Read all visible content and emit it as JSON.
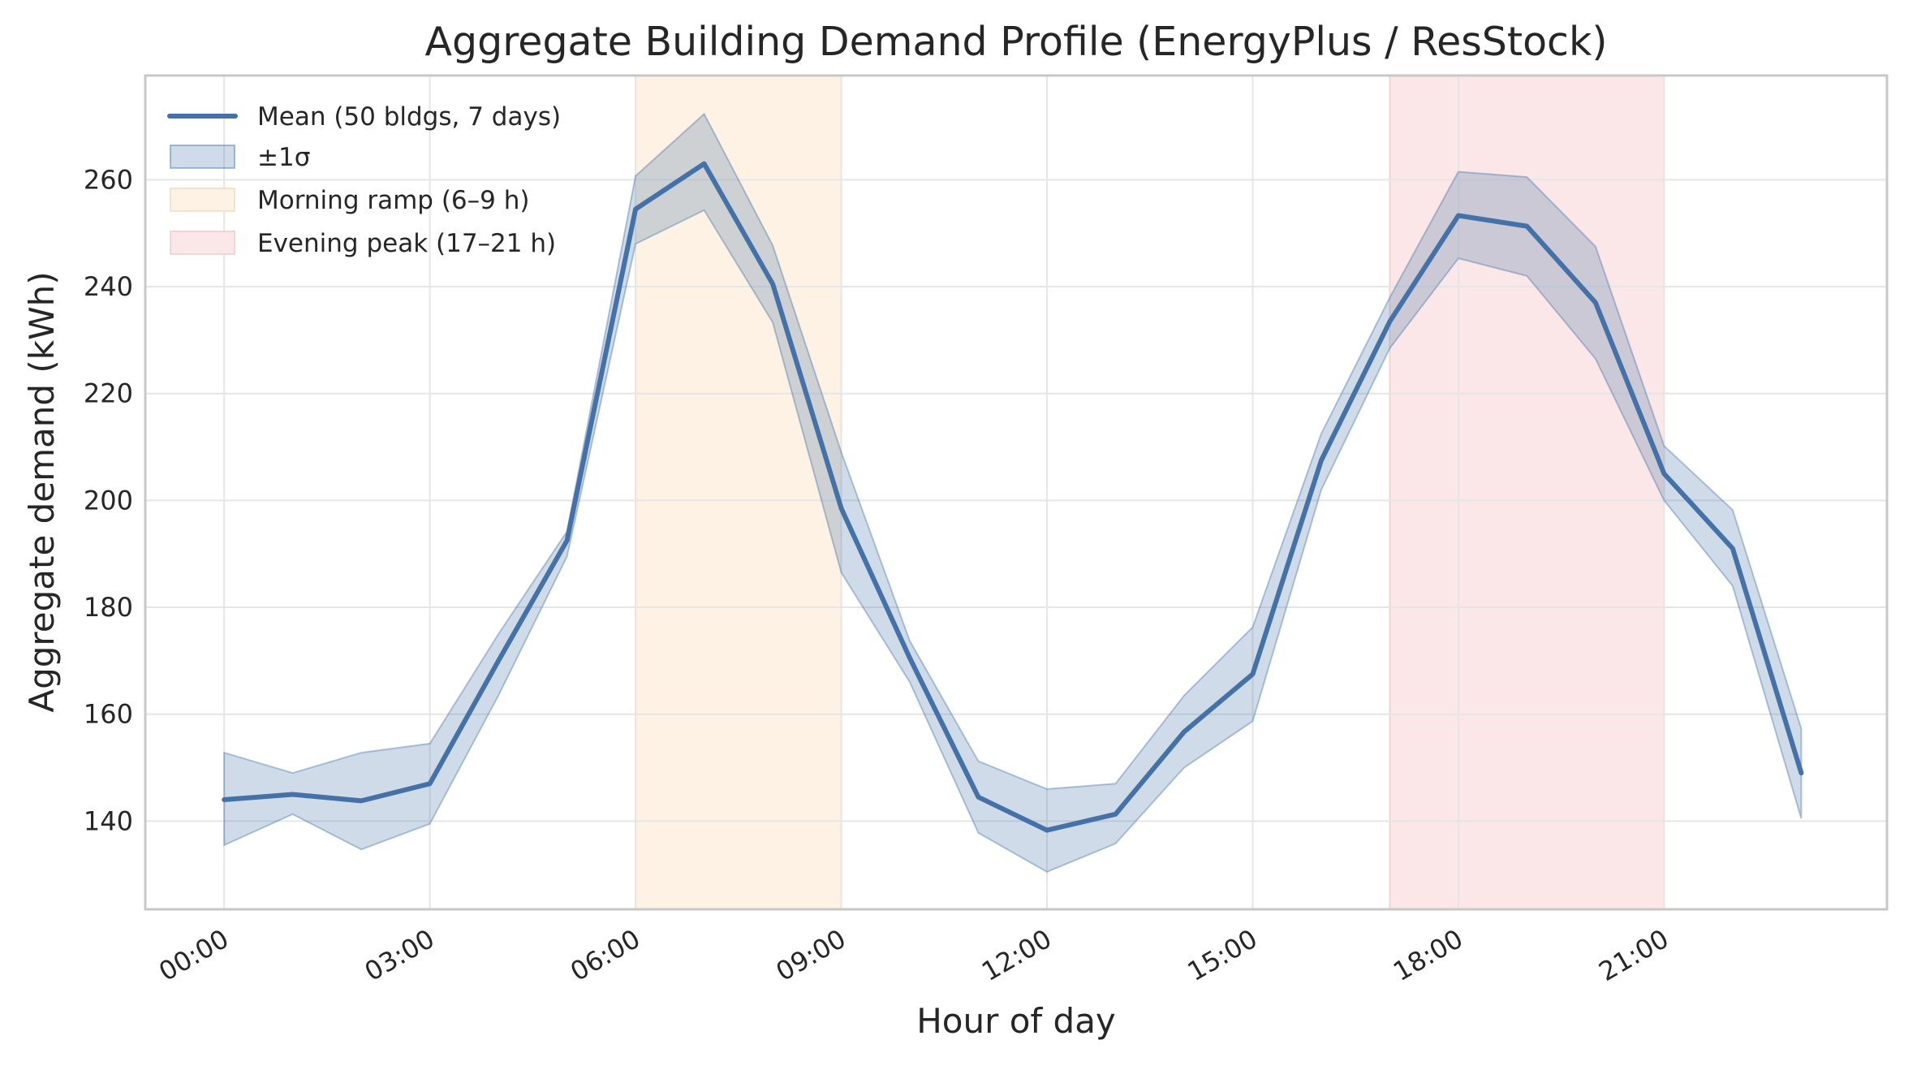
{
  "chart_data": {
    "type": "line",
    "title": "Aggregate Building Demand Profile (EnergyPlus / ResStock)",
    "xlabel": "Hour of day",
    "ylabel": "Aggregate demand (kWh)",
    "x": [
      0,
      1,
      2,
      3,
      4,
      5,
      6,
      7,
      8,
      9,
      10,
      11,
      12,
      13,
      14,
      15,
      16,
      17,
      18,
      19,
      20,
      21,
      22,
      23
    ],
    "xlim": [
      -1.15,
      24.25
    ],
    "ylim": [
      123.5,
      279.5
    ],
    "x_ticks": [
      {
        "value": 0,
        "label": "00:00"
      },
      {
        "value": 3,
        "label": "03:00"
      },
      {
        "value": 6,
        "label": "06:00"
      },
      {
        "value": 9,
        "label": "09:00"
      },
      {
        "value": 12,
        "label": "12:00"
      },
      {
        "value": 15,
        "label": "15:00"
      },
      {
        "value": 18,
        "label": "18:00"
      },
      {
        "value": 21,
        "label": "21:00"
      }
    ],
    "y_ticks": [
      {
        "value": 140,
        "label": "140"
      },
      {
        "value": 160,
        "label": "160"
      },
      {
        "value": 180,
        "label": "180"
      },
      {
        "value": 200,
        "label": "200"
      },
      {
        "value": 220,
        "label": "220"
      },
      {
        "value": 240,
        "label": "240"
      },
      {
        "value": 260,
        "label": "260"
      }
    ],
    "grid": true,
    "legend_position": "top-left",
    "series": [
      {
        "name": "Mean (50 bldgs, 7 days)",
        "kind": "line",
        "color": "#4472a8",
        "values": [
          144.0,
          145.0,
          143.8,
          147.0,
          170.0,
          192.5,
          254.5,
          263.0,
          240.5,
          198.5,
          170.5,
          144.5,
          138.3,
          141.3,
          156.7,
          167.5,
          207.5,
          233.5,
          253.3,
          251.3,
          237.0,
          205.0,
          191.0,
          149.0
        ]
      }
    ],
    "bands": [
      {
        "name": "±1σ",
        "color": "#4472a8",
        "lower": [
          135.5,
          141.3,
          134.7,
          139.5,
          163.5,
          189.5,
          248.0,
          254.3,
          233.3,
          186.5,
          166.0,
          137.8,
          130.5,
          135.8,
          150.0,
          158.7,
          202.0,
          228.5,
          245.3,
          242.0,
          226.5,
          200.0,
          184.0,
          140.5
        ],
        "upper": [
          152.8,
          149.0,
          152.8,
          154.5,
          175.0,
          194.2,
          260.7,
          272.3,
          247.7,
          209.0,
          173.7,
          151.2,
          146.0,
          147.0,
          163.5,
          176.3,
          212.5,
          238.0,
          261.5,
          260.5,
          247.5,
          210.2,
          198.2,
          157.3
        ]
      }
    ],
    "spans": [
      {
        "name": "Morning ramp (6–9 h)",
        "start": 6,
        "end": 9,
        "color": "#fdf2e3"
      },
      {
        "name": "Evening peak (17–21 h)",
        "start": 17,
        "end": 21,
        "color": "#fbe7e7"
      }
    ]
  }
}
